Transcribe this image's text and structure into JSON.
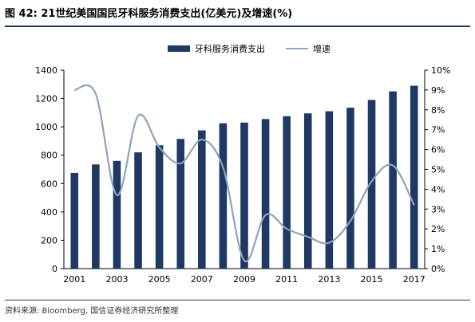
{
  "header": {
    "title": "图 42: 21世纪美国国民牙科服务消费支出(亿美元)及增速(%)"
  },
  "footer": {
    "source": "资料来源: Bloomberg, 国信证券经济研究所整理"
  },
  "colors": {
    "bar": "#1f3864",
    "line": "#8ea3bb",
    "rule": "#1f3864"
  },
  "chart_data": {
    "type": "bar",
    "x": [
      2001,
      2002,
      2003,
      2004,
      2005,
      2006,
      2007,
      2008,
      2009,
      2010,
      2011,
      2012,
      2013,
      2014,
      2015,
      2016,
      2017
    ],
    "x_tick_labels": [
      "2001",
      "2003",
      "2005",
      "2007",
      "2009",
      "2011",
      "2013",
      "2015",
      "2017"
    ],
    "series": [
      {
        "name": "牙科服务消费支出",
        "type": "bar",
        "axis": "left",
        "values": [
          675,
          735,
          760,
          820,
          870,
          915,
          975,
          1025,
          1030,
          1055,
          1075,
          1095,
          1110,
          1135,
          1190,
          1250,
          1290
        ]
      },
      {
        "name": "增速",
        "type": "line",
        "axis": "right",
        "values": [
          9.0,
          8.8,
          3.7,
          7.7,
          6.1,
          5.3,
          6.5,
          5.1,
          0.4,
          2.7,
          2.0,
          1.6,
          1.3,
          2.4,
          4.4,
          5.2,
          3.2
        ]
      }
    ],
    "y_left": {
      "min": 0,
      "max": 1400,
      "ticks": [
        0,
        200,
        400,
        600,
        800,
        1000,
        1200,
        1400
      ]
    },
    "y_right": {
      "min": 0,
      "max": 10,
      "ticks": [
        "0%",
        "1%",
        "2%",
        "3%",
        "4%",
        "5%",
        "6%",
        "7%",
        "8%",
        "9%",
        "10%"
      ]
    },
    "legend_position": "top-center",
    "grid": false
  }
}
